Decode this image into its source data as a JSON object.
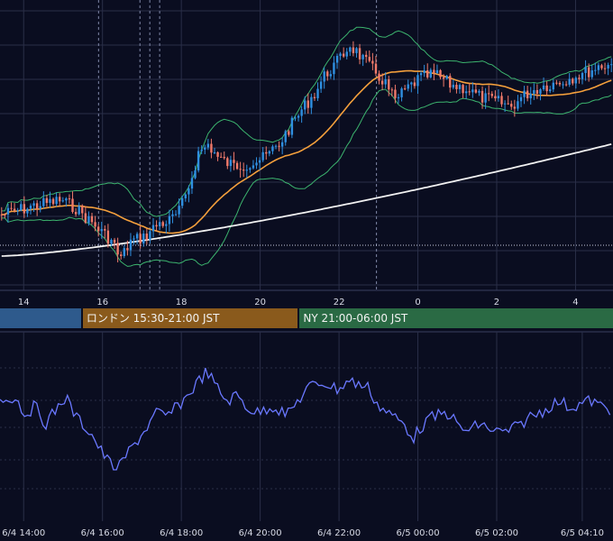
{
  "chart_data": [
    {
      "type": "candlestick",
      "panel": "price",
      "x_tick_labels": [
        "14",
        "16",
        "18",
        "20",
        "22",
        "0",
        "2",
        "4"
      ],
      "x_tick_hours": [
        14,
        16,
        18,
        20,
        22,
        24,
        26,
        28
      ],
      "x_range_hours": [
        13.4,
        28.95
      ],
      "overlays": [
        "bollinger-bands",
        "moving-average-orange",
        "moving-average-white"
      ],
      "colors": {
        "up": "#2f8fe0",
        "down": "#f07a6a",
        "ma_short": "#f5a03c",
        "ma_long": "#f2f2f2",
        "bands": "#3cb46e",
        "grid": "#2a2f48",
        "background": "#0a0d20"
      },
      "grid": true
    },
    {
      "type": "line",
      "panel": "oscillator",
      "x_tick_labels": [
        "6/4 14:00",
        "6/4 16:00",
        "6/4 18:00",
        "6/4 20:00",
        "6/4 22:00",
        "6/5 00:00",
        "6/5 02:00",
        "6/5 04:10"
      ],
      "x_tick_hours": [
        14,
        16,
        18,
        20,
        22,
        24,
        26,
        28.17
      ],
      "colors": {
        "line": "#6a78ff"
      },
      "grid": true
    }
  ],
  "sessions": [
    {
      "label": "",
      "color": "#2e5a8c",
      "from_hour": 13.4,
      "to_hour": 15.5
    },
    {
      "label": "ロンドン 15:30-21:00 JST",
      "color": "#8a5a1c",
      "from_hour": 15.5,
      "to_hour": 21.0
    },
    {
      "label": "NY 21:00-06:00 JST",
      "color": "#2a6a44",
      "from_hour": 21.0,
      "to_hour": 28.95
    }
  ]
}
